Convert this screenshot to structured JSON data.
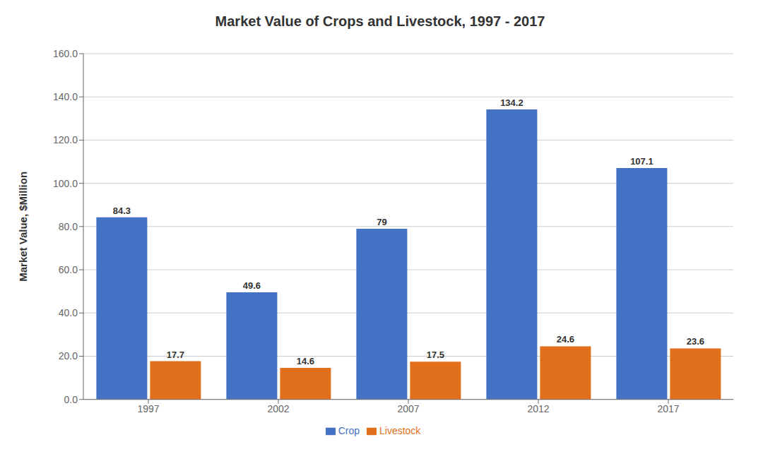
{
  "chart_data": {
    "type": "bar",
    "title": "Market Value of Crops and Livestock, 1997 - 2017",
    "ylabel": "Market Value, $Million",
    "categories": [
      "1997",
      "2002",
      "2007",
      "2012",
      "2017"
    ],
    "series": [
      {
        "name": "Crop",
        "color": "#4472C4",
        "values": [
          84.3,
          49.6,
          79.0,
          134.2,
          107.1
        ]
      },
      {
        "name": "Livestock",
        "color": "#E06E1A",
        "values": [
          17.7,
          14.6,
          17.5,
          24.6,
          23.6
        ]
      }
    ],
    "ylim": [
      0,
      160.0
    ],
    "yticks": [
      {
        "value": 0.0,
        "label": "0.0"
      },
      {
        "value": 20.0,
        "label": "20.0"
      },
      {
        "value": 40.0,
        "label": "40.0"
      },
      {
        "value": 60.0,
        "label": "60.0"
      },
      {
        "value": 80.0,
        "label": "80.0"
      },
      {
        "value": 100.0,
        "label": "100.0"
      },
      {
        "value": 120.0,
        "label": "120.0"
      },
      {
        "value": 140.0,
        "label": "140.0"
      },
      {
        "value": 160.0,
        "label": "160.0"
      }
    ],
    "grid": true,
    "legend": "bottom",
    "data_labels": true
  }
}
